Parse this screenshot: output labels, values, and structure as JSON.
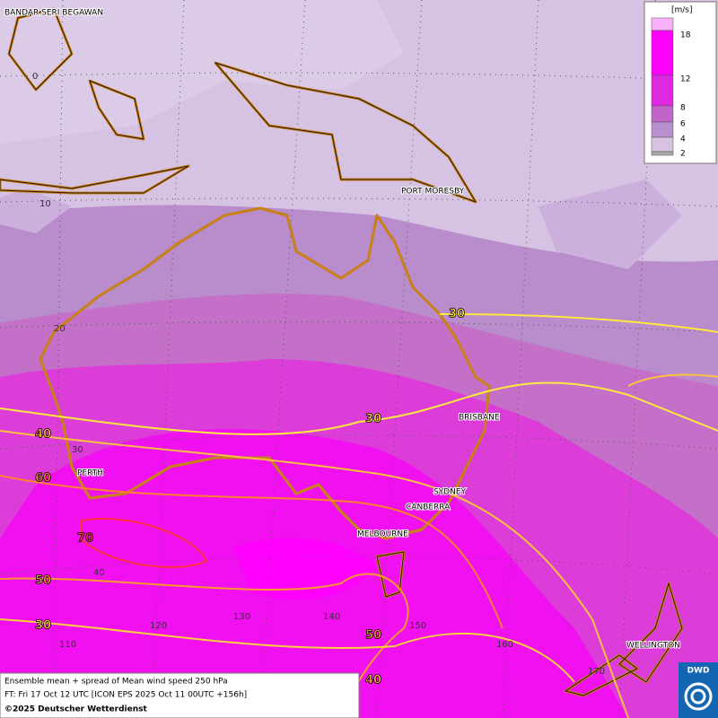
{
  "legend": {
    "unit": "[m/s]",
    "labels": [
      "18",
      "12",
      "8",
      "6",
      "4",
      "2"
    ]
  },
  "cities": [
    "BANDAR SERI BEGAWAN",
    "PORT MORESBY",
    "BRISBANE",
    "PERTH",
    "SYDNEY",
    "CANBERRA",
    "MELBOURNE",
    "WELLINGTON"
  ],
  "grid_labels": [
    "0",
    "10",
    "20",
    "30",
    "40",
    "110",
    "120",
    "130",
    "140",
    "150",
    "160",
    "170"
  ],
  "contour_labels": [
    "30",
    "30",
    "40",
    "60",
    "70",
    "50",
    "30",
    "50",
    "40"
  ],
  "caption": {
    "line1": "Ensemble mean + spread of Mean wind speed 250 hPa",
    "line2": "FT: Fri 17 Oct 12 UTC [ICON EPS 2025 Oct 11 00UTC +156h]",
    "line3": "©2025 Deutscher Wetterdienst"
  },
  "logo": "DWD"
}
